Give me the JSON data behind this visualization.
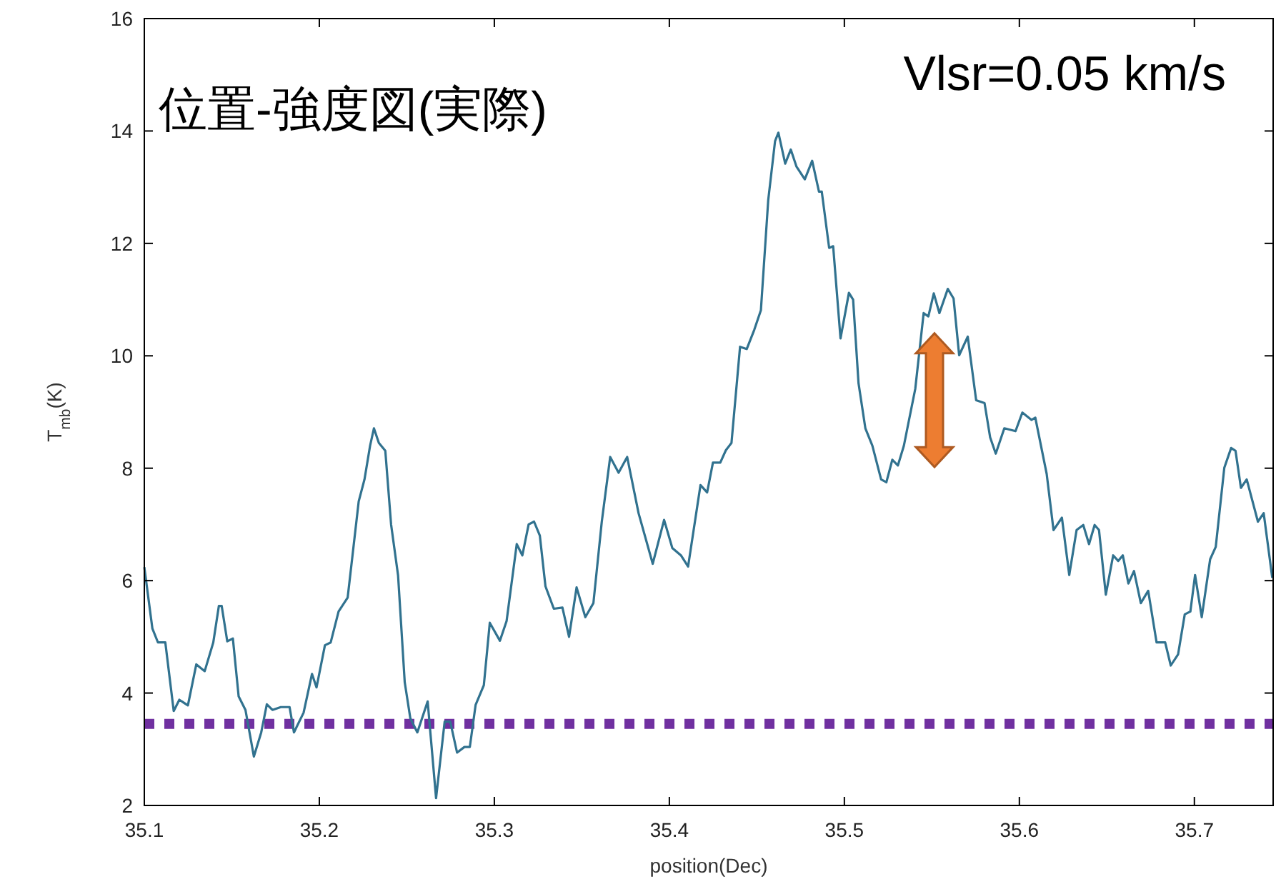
{
  "chart_data": {
    "type": "line",
    "xlabel": "position(Dec)",
    "ylabel": "T$_{mb}$(K)",
    "annotations": [
      "位置-強度図(実際)",
      "Vlsr=0.05 km/s"
    ],
    "xlim": [
      35.1,
      35.745
    ],
    "ylim": [
      2,
      16
    ],
    "xticks": [
      35.1,
      35.2,
      35.3,
      35.4,
      35.5,
      35.6,
      35.7
    ],
    "yticks": [
      2,
      4,
      6,
      8,
      10,
      12,
      14,
      16
    ],
    "grid": false,
    "marker": "none",
    "line_style": "solid",
    "ref_lines": [
      {
        "axis": "y",
        "value": 3.45,
        "color": "#7030a0",
        "line_style": "dotted"
      }
    ],
    "series": [
      {
        "color": "#31728f",
        "x": [
          35.1,
          35.1046,
          35.1078,
          35.112,
          35.1168,
          35.12,
          35.1249,
          35.1297,
          35.1345,
          35.1394,
          35.1426,
          35.1442,
          35.1474,
          35.1506,
          35.1539,
          35.1578,
          35.1626,
          35.1668,
          35.17,
          35.1732,
          35.178,
          35.183,
          35.1855,
          35.191,
          35.1958,
          35.1984,
          35.2032,
          35.2065,
          35.211,
          35.2162,
          35.2225,
          35.2258,
          35.229,
          35.2312,
          35.234,
          35.2377,
          35.241,
          35.245,
          35.2488,
          35.252,
          35.256,
          35.2619,
          35.2667,
          35.2716,
          35.2748,
          35.2787,
          35.2829,
          35.286,
          35.2893,
          35.294,
          35.2974,
          35.3032,
          35.307,
          35.3128,
          35.316,
          35.3196,
          35.3227,
          35.326,
          35.3292,
          35.334,
          35.3389,
          35.3427,
          35.347,
          35.352,
          35.3566,
          35.3614,
          35.3662,
          35.371,
          35.3759,
          35.3824,
          35.3905,
          35.397,
          35.4017,
          35.4066,
          35.4107,
          35.4178,
          35.4216,
          35.4249,
          35.4291,
          35.4323,
          35.4355,
          35.4404,
          35.4442,
          35.4485,
          35.4523,
          35.4565,
          35.4604,
          35.4623,
          35.4662,
          35.4694,
          35.4726,
          35.4774,
          35.4816,
          35.4855,
          35.4871,
          35.4913,
          35.4936,
          35.4978,
          35.5026,
          35.505,
          35.5081,
          35.512,
          35.516,
          35.521,
          35.524,
          35.5274,
          35.5306,
          35.534,
          35.5405,
          35.5453,
          35.548,
          35.5511,
          35.5543,
          35.5591,
          35.5624,
          35.5656,
          35.5705,
          35.5753,
          35.5801,
          35.5833,
          35.5865,
          35.5914,
          35.5978,
          35.6017,
          35.6069,
          35.6091,
          35.6156,
          35.6195,
          35.6243,
          35.6285,
          35.6327,
          35.6365,
          35.6398,
          35.643,
          35.6455,
          35.6494,
          35.6536,
          35.6565,
          35.6591,
          35.6623,
          35.6655,
          35.6694,
          35.6736,
          35.6784,
          35.6833,
          35.6865,
          35.6907,
          35.6945,
          35.6977,
          35.7004,
          35.7042,
          35.709,
          35.7122,
          35.7171,
          35.721,
          35.7235,
          35.7266,
          35.7299,
          35.7363,
          35.7396,
          35.7445
        ],
        "values": [
          6.24,
          5.15,
          4.9,
          4.9,
          3.68,
          3.88,
          3.78,
          4.51,
          4.39,
          4.9,
          5.55,
          5.55,
          4.92,
          4.97,
          3.94,
          3.7,
          2.87,
          3.3,
          3.8,
          3.7,
          3.75,
          3.75,
          3.3,
          3.65,
          4.34,
          4.1,
          4.85,
          4.9,
          5.45,
          5.7,
          7.41,
          7.8,
          8.4,
          8.71,
          8.45,
          8.31,
          7.0,
          6.09,
          4.19,
          3.55,
          3.3,
          3.85,
          2.13,
          3.49,
          3.49,
          2.94,
          3.04,
          3.04,
          3.79,
          4.14,
          5.25,
          4.93,
          5.28,
          6.65,
          6.45,
          7.0,
          7.05,
          6.8,
          5.9,
          5.5,
          5.52,
          5.0,
          5.88,
          5.35,
          5.6,
          7.05,
          8.2,
          7.92,
          8.2,
          7.2,
          6.3,
          7.08,
          6.58,
          6.45,
          6.25,
          7.7,
          7.57,
          8.1,
          8.1,
          8.32,
          8.45,
          10.16,
          10.12,
          10.46,
          10.81,
          12.77,
          13.82,
          13.97,
          13.42,
          13.67,
          13.37,
          13.14,
          13.47,
          12.92,
          12.92,
          11.92,
          11.95,
          10.31,
          11.12,
          11.0,
          9.51,
          8.71,
          8.4,
          7.8,
          7.75,
          8.15,
          8.05,
          8.4,
          9.41,
          10.76,
          10.7,
          11.11,
          10.76,
          11.19,
          11.02,
          10.01,
          10.34,
          9.21,
          9.16,
          8.55,
          8.26,
          8.71,
          8.66,
          8.99,
          8.86,
          8.9,
          7.9,
          6.9,
          7.12,
          6.1,
          6.9,
          6.99,
          6.65,
          6.99,
          6.9,
          5.75,
          6.45,
          6.35,
          6.45,
          5.95,
          6.17,
          5.6,
          5.82,
          4.9,
          4.9,
          4.49,
          4.69,
          5.4,
          5.45,
          6.1,
          5.35,
          6.38,
          6.6,
          8.01,
          8.36,
          8.31,
          7.65,
          7.8,
          7.05,
          7.2,
          6.05
        ]
      }
    ]
  }
}
